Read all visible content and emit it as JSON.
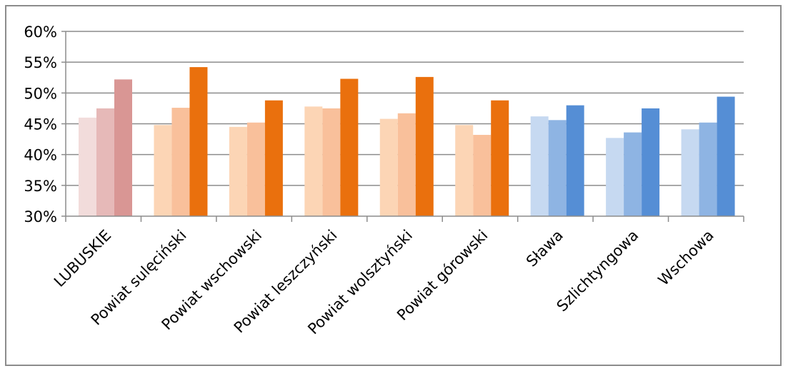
{
  "chart_data": {
    "type": "bar",
    "title": "",
    "xlabel": "",
    "ylabel": "",
    "ylim": [
      0.3,
      0.6
    ],
    "y_ticks": [
      0.3,
      0.35,
      0.4,
      0.45,
      0.5,
      0.55,
      0.6
    ],
    "y_tick_labels": [
      "30%",
      "35%",
      "40%",
      "45%",
      "50%",
      "55%",
      "60%"
    ],
    "grid": true,
    "legend": "none",
    "categories": [
      "LUBUSKIE",
      "Powiat sulęciński",
      "Powiat wschowski",
      "Powiat leszczyński",
      "Powiat wolsztyński",
      "Powiat górowski",
      "Sława",
      "Szlichtyngowa",
      "Wschowa"
    ],
    "series": [
      {
        "values": [
          0.46,
          0.448,
          0.445,
          0.478,
          0.458,
          0.448,
          0.462,
          0.427,
          0.441
        ]
      },
      {
        "values": [
          0.475,
          0.476,
          0.452,
          0.475,
          0.467,
          0.432,
          0.456,
          0.436,
          0.452
        ]
      },
      {
        "values": [
          0.522,
          0.542,
          0.488,
          0.523,
          0.526,
          0.488,
          0.48,
          0.475,
          0.494
        ]
      }
    ],
    "category_colors": [
      [
        "#f2dcdb",
        "#e6b9b8",
        "#d99694"
      ],
      [
        "#fcd5b5",
        "#f9c09b",
        "#ea700d"
      ],
      [
        "#fcd5b5",
        "#f9c09b",
        "#ea700d"
      ],
      [
        "#fcd5b5",
        "#f9c09b",
        "#ea700d"
      ],
      [
        "#fcd5b5",
        "#f9c09b",
        "#ea700d"
      ],
      [
        "#fcd5b5",
        "#f9c09b",
        "#ea700d"
      ],
      [
        "#c6d9f1",
        "#8eb4e3",
        "#558ed5"
      ],
      [
        "#c6d9f1",
        "#8eb4e3",
        "#558ed5"
      ],
      [
        "#c6d9f1",
        "#8eb4e3",
        "#558ed5"
      ]
    ],
    "gridline_color": "#8c8c8c",
    "axis_color": "#8c8c8c"
  }
}
